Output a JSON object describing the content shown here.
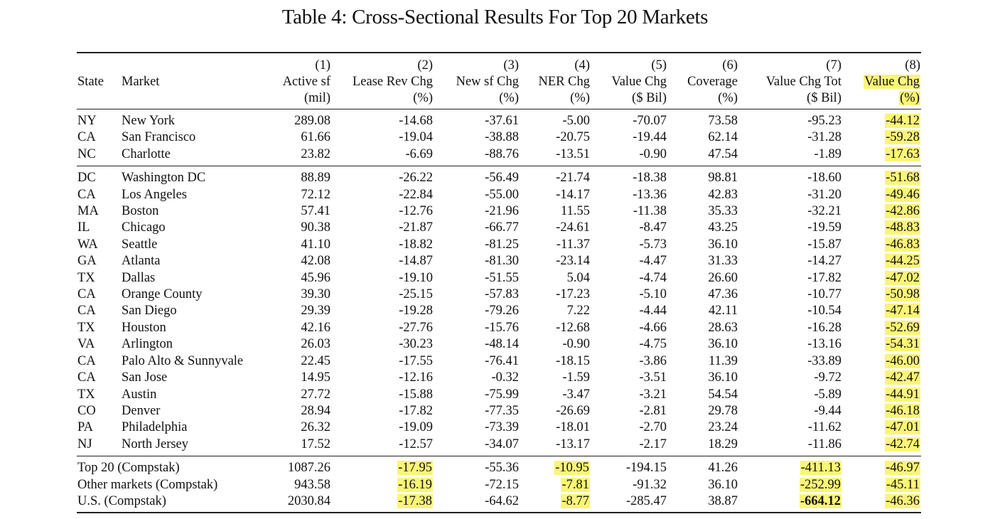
{
  "title": "Table 4: Cross-Sectional Results For Top 20 Markets",
  "headers": {
    "state": "State",
    "market": "Market",
    "columns": [
      {
        "num": "(1)",
        "name": "Active sf",
        "unit": "(mil)"
      },
      {
        "num": "(2)",
        "name": "Lease Rev Chg",
        "unit": "(%)"
      },
      {
        "num": "(3)",
        "name": "New sf Chg",
        "unit": "(%)"
      },
      {
        "num": "(4)",
        "name": "NER Chg",
        "unit": "(%)"
      },
      {
        "num": "(5)",
        "name": "Value Chg",
        "unit": "($ Bil)"
      },
      {
        "num": "(6)",
        "name": "Coverage",
        "unit": "(%)"
      },
      {
        "num": "(7)",
        "name": "Value Chg Tot",
        "unit": "($ Bil)"
      },
      {
        "num": "(8)",
        "name": "Value Chg",
        "unit": "(%)"
      }
    ]
  },
  "highlight_color": "#fbf577",
  "group1": [
    {
      "state": "NY",
      "market": "New York",
      "v": [
        "289.08",
        "-14.68",
        "-37.61",
        "-5.00",
        "-70.07",
        "73.58",
        "-95.23",
        "-44.12"
      ]
    },
    {
      "state": "CA",
      "market": "San Francisco",
      "v": [
        "61.66",
        "-19.04",
        "-38.88",
        "-20.75",
        "-19.44",
        "62.14",
        "-31.28",
        "-59.28"
      ]
    },
    {
      "state": "NC",
      "market": "Charlotte",
      "v": [
        "23.82",
        "-6.69",
        "-88.76",
        "-13.51",
        "-0.90",
        "47.54",
        "-1.89",
        "-17.63"
      ]
    }
  ],
  "group2": [
    {
      "state": "DC",
      "market": "Washington DC",
      "v": [
        "88.89",
        "-26.22",
        "-56.49",
        "-21.74",
        "-18.38",
        "98.81",
        "-18.60",
        "-51.68"
      ]
    },
    {
      "state": "CA",
      "market": "Los Angeles",
      "v": [
        "72.12",
        "-22.84",
        "-55.00",
        "-14.17",
        "-13.36",
        "42.83",
        "-31.20",
        "-49.46"
      ]
    },
    {
      "state": "MA",
      "market": "Boston",
      "v": [
        "57.41",
        "-12.76",
        "-21.96",
        "11.55",
        "-11.38",
        "35.33",
        "-32.21",
        "-42.86"
      ]
    },
    {
      "state": "IL",
      "market": "Chicago",
      "v": [
        "90.38",
        "-21.87",
        "-66.77",
        "-24.61",
        "-8.47",
        "43.25",
        "-19.59",
        "-48.83"
      ]
    },
    {
      "state": "WA",
      "market": "Seattle",
      "v": [
        "41.10",
        "-18.82",
        "-81.25",
        "-11.37",
        "-5.73",
        "36.10",
        "-15.87",
        "-46.83"
      ]
    },
    {
      "state": "GA",
      "market": "Atlanta",
      "v": [
        "42.08",
        "-14.87",
        "-81.30",
        "-23.14",
        "-4.47",
        "31.33",
        "-14.27",
        "-44.25"
      ]
    },
    {
      "state": "TX",
      "market": "Dallas",
      "v": [
        "45.96",
        "-19.10",
        "-51.55",
        "5.04",
        "-4.74",
        "26.60",
        "-17.82",
        "-47.02"
      ]
    },
    {
      "state": "CA",
      "market": "Orange County",
      "v": [
        "39.30",
        "-25.15",
        "-57.83",
        "-17.23",
        "-5.10",
        "47.36",
        "-10.77",
        "-50.98"
      ]
    },
    {
      "state": "CA",
      "market": "San Diego",
      "v": [
        "29.39",
        "-19.28",
        "-79.26",
        "7.22",
        "-4.44",
        "42.11",
        "-10.54",
        "-47.14"
      ]
    },
    {
      "state": "TX",
      "market": "Houston",
      "v": [
        "42.16",
        "-27.76",
        "-15.76",
        "-12.68",
        "-4.66",
        "28.63",
        "-16.28",
        "-52.69"
      ]
    },
    {
      "state": "VA",
      "market": "Arlington",
      "v": [
        "26.03",
        "-30.23",
        "-48.14",
        "-0.90",
        "-4.75",
        "36.10",
        "-13.16",
        "-54.31"
      ]
    },
    {
      "state": "CA",
      "market": "Palo Alto & Sunnyvale",
      "v": [
        "22.45",
        "-17.55",
        "-76.41",
        "-18.15",
        "-3.86",
        "11.39",
        "-33.89",
        "-46.00"
      ]
    },
    {
      "state": "CA",
      "market": "San Jose",
      "v": [
        "14.95",
        "-12.16",
        "-0.32",
        "-1.59",
        "-3.51",
        "36.10",
        "-9.72",
        "-42.47"
      ]
    },
    {
      "state": "TX",
      "market": "Austin",
      "v": [
        "27.72",
        "-15.88",
        "-75.99",
        "-3.47",
        "-3.21",
        "54.54",
        "-5.89",
        "-44.91"
      ]
    },
    {
      "state": "CO",
      "market": "Denver",
      "v": [
        "28.94",
        "-17.82",
        "-77.35",
        "-26.69",
        "-2.81",
        "29.78",
        "-9.44",
        "-46.18"
      ]
    },
    {
      "state": "PA",
      "market": "Philadelphia",
      "v": [
        "26.32",
        "-19.09",
        "-73.39",
        "-18.01",
        "-2.70",
        "23.24",
        "-11.62",
        "-47.01"
      ]
    },
    {
      "state": "NJ",
      "market": "North Jersey",
      "v": [
        "17.52",
        "-12.57",
        "-34.07",
        "-13.17",
        "-2.17",
        "18.29",
        "-11.86",
        "-42.74"
      ]
    }
  ],
  "totals": [
    {
      "label": "Top 20 (Compstak)",
      "v": [
        "1087.26",
        "-17.95",
        "-55.36",
        "-10.95",
        "-194.15",
        "41.26",
        "-411.13",
        "-46.97"
      ]
    },
    {
      "label": "Other markets (Compstak)",
      "v": [
        "943.58",
        "-16.19",
        "-72.15",
        "-7.81",
        "-91.32",
        "36.10",
        "-252.99",
        "-45.11"
      ]
    },
    {
      "label": "U.S. (Compstak)",
      "v": [
        "2030.84",
        "-17.38",
        "-64.62",
        "-8.77",
        "-285.47",
        "38.87",
        "-664.12",
        "-46.36"
      ]
    }
  ]
}
